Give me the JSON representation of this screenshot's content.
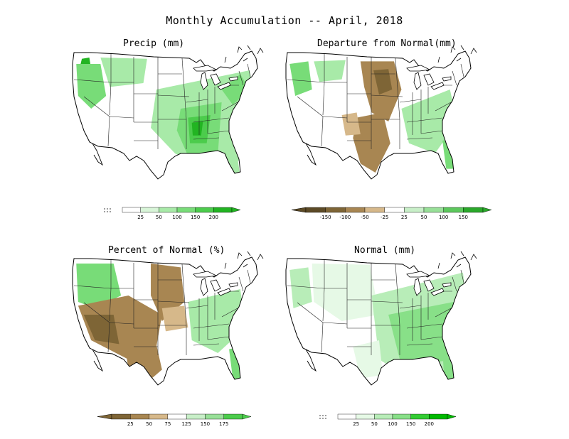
{
  "figure": {
    "title": "Monthly Accumulation -- April, 2018"
  },
  "panels": [
    {
      "id": "precip",
      "title": "Precip (mm)",
      "legend": {
        "ticks": [
          "25",
          "50",
          "100",
          "150",
          "200"
        ],
        "colors": [
          "#ffffff",
          "#d8f5d8",
          "#a8eaa8",
          "#78dc78",
          "#4ccc4c",
          "#22b422"
        ]
      },
      "blobs": [
        {
          "c": "#22b422",
          "pts": [
            [
              0.05,
              0.06
            ],
            [
              0.09,
              0.05
            ],
            [
              0.1,
              0.14
            ],
            [
              0.06,
              0.2
            ],
            [
              0.04,
              0.12
            ]
          ]
        },
        {
          "c": "#78dc78",
          "pts": [
            [
              0.02,
              0.1
            ],
            [
              0.15,
              0.1
            ],
            [
              0.18,
              0.35
            ],
            [
              0.1,
              0.45
            ],
            [
              0.03,
              0.35
            ]
          ]
        },
        {
          "c": "#a8eaa8",
          "pts": [
            [
              0.15,
              0.05
            ],
            [
              0.4,
              0.06
            ],
            [
              0.38,
              0.25
            ],
            [
              0.2,
              0.28
            ]
          ]
        },
        {
          "c": "#a8eaa8",
          "pts": [
            [
              0.45,
              0.3
            ],
            [
              0.95,
              0.15
            ],
            [
              0.98,
              0.4
            ],
            [
              0.9,
              0.85
            ],
            [
              0.75,
              0.95
            ],
            [
              0.55,
              0.8
            ],
            [
              0.42,
              0.6
            ]
          ]
        },
        {
          "c": "#78dc78",
          "pts": [
            [
              0.58,
              0.45
            ],
            [
              0.8,
              0.4
            ],
            [
              0.78,
              0.8
            ],
            [
              0.62,
              0.82
            ],
            [
              0.56,
              0.62
            ]
          ]
        },
        {
          "c": "#4ccc4c",
          "pts": [
            [
              0.62,
              0.52
            ],
            [
              0.74,
              0.5
            ],
            [
              0.72,
              0.72
            ],
            [
              0.63,
              0.72
            ]
          ]
        },
        {
          "c": "#22b422",
          "pts": [
            [
              0.64,
              0.56
            ],
            [
              0.7,
              0.55
            ],
            [
              0.69,
              0.66
            ],
            [
              0.645,
              0.66
            ]
          ]
        },
        {
          "c": "#78dc78",
          "pts": [
            [
              0.8,
              0.3
            ],
            [
              0.9,
              0.18
            ],
            [
              0.95,
              0.3
            ],
            [
              0.86,
              0.42
            ]
          ]
        },
        {
          "c": "#a8eaa8",
          "pts": [
            [
              0.82,
              0.8
            ],
            [
              0.88,
              0.78
            ],
            [
              0.9,
              0.98
            ],
            [
              0.84,
              0.98
            ]
          ]
        }
      ]
    },
    {
      "id": "departure",
      "title": "Departure from Normal(mm)",
      "legend": {
        "ticks": [
          "-150",
          "-100",
          "-50",
          "-25",
          "25",
          "50",
          "100",
          "150"
        ],
        "colors": [
          "#5c4a26",
          "#7e6536",
          "#a88652",
          "#d6b88a",
          "#ffffff",
          "#c8efc8",
          "#98e098",
          "#5cc85c",
          "#2aa82a"
        ]
      },
      "blobs": [
        {
          "c": "#78dc78",
          "pts": [
            [
              0.02,
              0.1
            ],
            [
              0.12,
              0.08
            ],
            [
              0.14,
              0.3
            ],
            [
              0.05,
              0.35
            ]
          ]
        },
        {
          "c": "#a8eaa8",
          "pts": [
            [
              0.15,
              0.08
            ],
            [
              0.32,
              0.07
            ],
            [
              0.3,
              0.22
            ],
            [
              0.18,
              0.24
            ]
          ]
        },
        {
          "c": "#a88652",
          "pts": [
            [
              0.4,
              0.08
            ],
            [
              0.58,
              0.08
            ],
            [
              0.62,
              0.3
            ],
            [
              0.55,
              0.55
            ],
            [
              0.46,
              0.48
            ],
            [
              0.42,
              0.28
            ]
          ]
        },
        {
          "c": "#7e6536",
          "pts": [
            [
              0.47,
              0.15
            ],
            [
              0.55,
              0.14
            ],
            [
              0.57,
              0.3
            ],
            [
              0.5,
              0.34
            ]
          ]
        },
        {
          "c": "#a88652",
          "pts": [
            [
              0.38,
              0.52
            ],
            [
              0.52,
              0.48
            ],
            [
              0.56,
              0.72
            ],
            [
              0.48,
              0.95
            ],
            [
              0.4,
              0.88
            ],
            [
              0.36,
              0.68
            ]
          ]
        },
        {
          "c": "#d6b88a",
          "pts": [
            [
              0.3,
              0.5
            ],
            [
              0.38,
              0.48
            ],
            [
              0.4,
              0.65
            ],
            [
              0.32,
              0.66
            ]
          ]
        },
        {
          "c": "#a8eaa8",
          "pts": [
            [
              0.62,
              0.45
            ],
            [
              0.88,
              0.3
            ],
            [
              0.92,
              0.55
            ],
            [
              0.8,
              0.8
            ],
            [
              0.66,
              0.72
            ]
          ]
        },
        {
          "c": "#78dc78",
          "pts": [
            [
              0.84,
              0.7
            ],
            [
              0.9,
              0.68
            ],
            [
              0.92,
              0.92
            ],
            [
              0.86,
              0.92
            ]
          ]
        }
      ]
    },
    {
      "id": "percent",
      "title": "Percent of Normal (%)",
      "legend": {
        "ticks": [
          "25",
          "50",
          "75",
          "125",
          "150",
          "175"
        ],
        "colors": [
          "#7e6536",
          "#a88652",
          "#d6b88a",
          "#ffffff",
          "#c8efc8",
          "#98e098",
          "#4ccc4c"
        ]
      },
      "blobs": [
        {
          "c": "#78dc78",
          "pts": [
            [
              0.02,
              0.05
            ],
            [
              0.22,
              0.05
            ],
            [
              0.26,
              0.3
            ],
            [
              0.12,
              0.4
            ],
            [
              0.03,
              0.35
            ]
          ]
        },
        {
          "c": "#a88652",
          "pts": [
            [
              0.03,
              0.38
            ],
            [
              0.3,
              0.3
            ],
            [
              0.48,
              0.45
            ],
            [
              0.45,
              0.7
            ],
            [
              0.3,
              0.8
            ],
            [
              0.1,
              0.65
            ]
          ]
        },
        {
          "c": "#7e6536",
          "pts": [
            [
              0.06,
              0.45
            ],
            [
              0.22,
              0.45
            ],
            [
              0.25,
              0.68
            ],
            [
              0.12,
              0.65
            ]
          ]
        },
        {
          "c": "#a88652",
          "pts": [
            [
              0.42,
              0.05
            ],
            [
              0.58,
              0.08
            ],
            [
              0.6,
              0.35
            ],
            [
              0.48,
              0.5
            ],
            [
              0.42,
              0.3
            ]
          ]
        },
        {
          "c": "#a88652",
          "pts": [
            [
              0.28,
              0.68
            ],
            [
              0.44,
              0.62
            ],
            [
              0.48,
              0.88
            ],
            [
              0.4,
              0.98
            ],
            [
              0.3,
              0.88
            ]
          ]
        },
        {
          "c": "#d6b88a",
          "pts": [
            [
              0.48,
              0.4
            ],
            [
              0.6,
              0.38
            ],
            [
              0.62,
              0.55
            ],
            [
              0.5,
              0.58
            ]
          ]
        },
        {
          "c": "#a8eaa8",
          "pts": [
            [
              0.62,
              0.35
            ],
            [
              0.9,
              0.25
            ],
            [
              0.93,
              0.55
            ],
            [
              0.78,
              0.75
            ],
            [
              0.64,
              0.65
            ]
          ]
        },
        {
          "c": "#78dc78",
          "pts": [
            [
              0.84,
              0.72
            ],
            [
              0.9,
              0.7
            ],
            [
              0.92,
              0.95
            ],
            [
              0.86,
              0.95
            ]
          ]
        }
      ]
    },
    {
      "id": "normal",
      "title": "Normal (mm)",
      "legend": {
        "ticks": [
          "25",
          "50",
          "100",
          "150",
          "200"
        ],
        "colors": [
          "#ffffff",
          "#e6f9e6",
          "#b8edb8",
          "#88e088",
          "#33cc33",
          "#00b800"
        ]
      },
      "blobs": [
        {
          "c": "#b8edb8",
          "pts": [
            [
              0.02,
              0.1
            ],
            [
              0.12,
              0.08
            ],
            [
              0.14,
              0.35
            ],
            [
              0.04,
              0.4
            ]
          ]
        },
        {
          "c": "#e6f9e6",
          "pts": [
            [
              0.14,
              0.05
            ],
            [
              0.45,
              0.06
            ],
            [
              0.5,
              0.45
            ],
            [
              0.3,
              0.5
            ],
            [
              0.15,
              0.35
            ]
          ]
        },
        {
          "c": "#b8edb8",
          "pts": [
            [
              0.46,
              0.3
            ],
            [
              0.95,
              0.12
            ],
            [
              0.98,
              0.45
            ],
            [
              0.92,
              0.9
            ],
            [
              0.7,
              0.98
            ],
            [
              0.5,
              0.8
            ]
          ]
        },
        {
          "c": "#88e088",
          "pts": [
            [
              0.55,
              0.45
            ],
            [
              0.9,
              0.35
            ],
            [
              0.92,
              0.8
            ],
            [
              0.62,
              0.85
            ]
          ]
        },
        {
          "c": "#88e088",
          "pts": [
            [
              0.84,
              0.72
            ],
            [
              0.92,
              0.7
            ],
            [
              0.93,
              0.98
            ],
            [
              0.85,
              0.98
            ]
          ]
        },
        {
          "c": "#e6f9e6",
          "pts": [
            [
              0.36,
              0.7
            ],
            [
              0.5,
              0.65
            ],
            [
              0.52,
              0.92
            ],
            [
              0.4,
              0.95
            ]
          ]
        }
      ]
    }
  ]
}
